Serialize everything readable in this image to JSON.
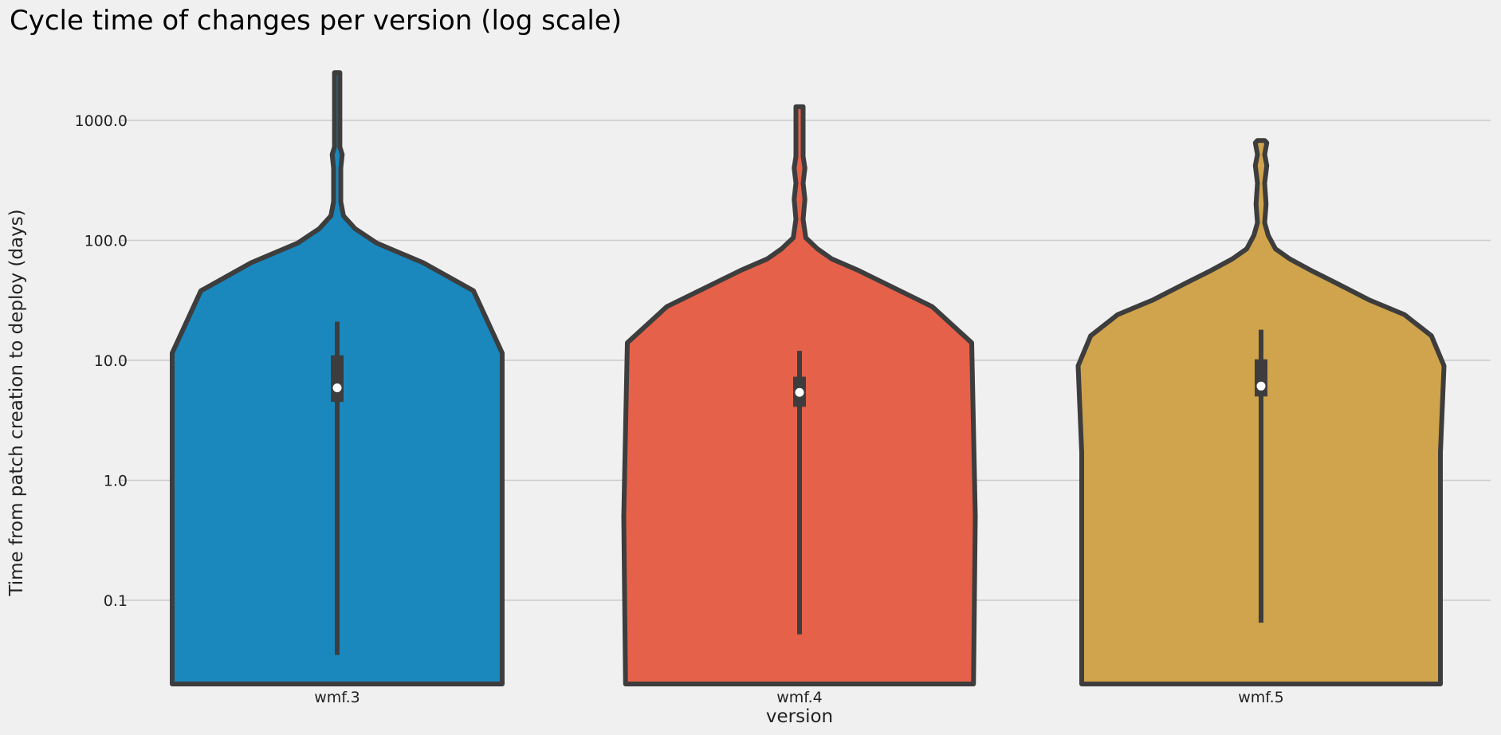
{
  "chart_data": {
    "type": "violin",
    "title": "Cycle time of changes per version (log scale)",
    "xlabel": "version",
    "ylabel": "Time from patch creation to deploy (days)",
    "yscale": "log",
    "ylim": [
      0.02,
      4000
    ],
    "yticks": [
      0.1,
      1.0,
      10.0,
      100.0,
      1000.0
    ],
    "ytick_labels": [
      "0.1",
      "1.0",
      "10.0",
      "100.0",
      "1000.0"
    ],
    "grid": "horizontal",
    "categories": [
      "wmf.3",
      "wmf.4",
      "wmf.5"
    ],
    "series": [
      {
        "category": "wmf.3",
        "color": "#1a87bd",
        "median": 5.9,
        "q1": 4.5,
        "q3": 11,
        "whisker_low": 0.035,
        "whisker_high": 21,
        "max": 2500,
        "violin_profile": [
          [
            0.02,
            0.92
          ],
          [
            11.5,
            0.92
          ],
          [
            38,
            0.76
          ],
          [
            65,
            0.48
          ],
          [
            95,
            0.22
          ],
          [
            125,
            0.1
          ],
          [
            160,
            0.035
          ],
          [
            210,
            0.02
          ],
          [
            400,
            0.02
          ],
          [
            520,
            0.028
          ],
          [
            600,
            0.015
          ],
          [
            2500,
            0.015
          ]
        ]
      },
      {
        "category": "wmf.4",
        "color": "#e5614a",
        "median": 5.4,
        "q1": 4.1,
        "q3": 7.3,
        "whisker_low": 0.052,
        "whisker_high": 12,
        "max": 1300,
        "violin_profile": [
          [
            0.02,
            0.97
          ],
          [
            0.5,
            0.98
          ],
          [
            14,
            0.96
          ],
          [
            28,
            0.74
          ],
          [
            42,
            0.5
          ],
          [
            56,
            0.33
          ],
          [
            70,
            0.18
          ],
          [
            85,
            0.1
          ],
          [
            105,
            0.035
          ],
          [
            150,
            0.02
          ],
          [
            220,
            0.03
          ],
          [
            300,
            0.02
          ],
          [
            400,
            0.03
          ],
          [
            500,
            0.02
          ],
          [
            1300,
            0.02
          ]
        ]
      },
      {
        "category": "wmf.5",
        "color": "#d0a44c",
        "median": 6.1,
        "q1": 5.0,
        "q3": 10.2,
        "whisker_low": 0.065,
        "whisker_high": 18,
        "max": 680,
        "violin_profile": [
          [
            0.02,
            1.0
          ],
          [
            1.7,
            1.0
          ],
          [
            9,
            1.02
          ],
          [
            16,
            0.95
          ],
          [
            24,
            0.8
          ],
          [
            32,
            0.6
          ],
          [
            44,
            0.42
          ],
          [
            56,
            0.28
          ],
          [
            70,
            0.16
          ],
          [
            85,
            0.08
          ],
          [
            110,
            0.04
          ],
          [
            140,
            0.02
          ],
          [
            200,
            0.028
          ],
          [
            300,
            0.02
          ],
          [
            420,
            0.032
          ],
          [
            520,
            0.02
          ],
          [
            650,
            0.032
          ],
          [
            680,
            0.02
          ]
        ]
      }
    ]
  }
}
